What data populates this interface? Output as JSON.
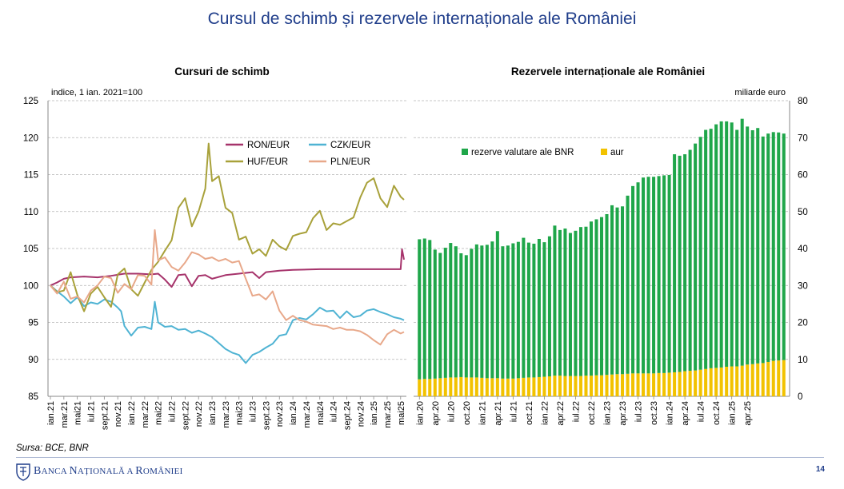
{
  "slide": {
    "title": "Cursul de schimb și rezervele internaționale ale României",
    "source": "Sursa: BCE, BNR",
    "bank_name_parts": [
      "B",
      "ANCA ",
      "N",
      "AȚIONALĂ A ",
      "R",
      "OMÂNIEI"
    ],
    "page_number": "14",
    "colors": {
      "title": "#1f3d8a",
      "logo": "#1f3d8a"
    },
    "logo_icon": "bnr-coat-of-arms-icon"
  },
  "chart_data": [
    {
      "type": "line",
      "title": "Cursuri de schimb",
      "unit_label": "indice, 1 ian. 2021=100",
      "ylim": [
        85,
        125
      ],
      "yticks": [
        85,
        90,
        95,
        100,
        105,
        110,
        115,
        120,
        125
      ],
      "grid": true,
      "legend_position": "top-right",
      "x_labels": [
        "ian.21",
        "mar.21",
        "mai21",
        "iul.21",
        "sept.21",
        "nov.21",
        "ian.22",
        "mar.22",
        "mai22",
        "iul.22",
        "sept.22",
        "nov.22",
        "ian.23",
        "mar.23",
        "mai23",
        "iul.23",
        "sept.23",
        "nov.23",
        "ian.24",
        "mar.24",
        "mai24",
        "iul.24",
        "sept.24",
        "nov.24",
        "ian.25",
        "mar.25",
        "mai25"
      ],
      "series": [
        {
          "name": "RON/EUR",
          "color": "#a6336b",
          "points": [
            [
              0,
              100
            ],
            [
              1,
              100.4
            ],
            [
              2,
              100.9
            ],
            [
              3,
              101.1
            ],
            [
              5,
              101.2
            ],
            [
              7,
              101.1
            ],
            [
              9,
              101.3
            ],
            [
              11,
              101.6
            ],
            [
              13,
              101.6
            ],
            [
              15,
              101.5
            ],
            [
              16,
              101.6
            ],
            [
              17,
              100.8
            ],
            [
              18,
              99.8
            ],
            [
              19,
              101.4
            ],
            [
              20,
              101.5
            ],
            [
              21,
              99.9
            ],
            [
              22,
              101.3
            ],
            [
              23,
              101.4
            ],
            [
              24,
              100.9
            ],
            [
              26,
              101.4
            ],
            [
              28,
              101.6
            ],
            [
              30,
              101.8
            ],
            [
              31,
              101.0
            ],
            [
              32,
              101.8
            ],
            [
              34,
              102.0
            ],
            [
              36,
              102.1
            ],
            [
              40,
              102.2
            ],
            [
              44,
              102.2
            ],
            [
              48,
              102.2
            ],
            [
              52,
              102.2
            ],
            [
              52.2,
              104.9
            ],
            [
              52.5,
              103.5
            ]
          ]
        },
        {
          "name": "CZK/EUR",
          "color": "#4fb3d3",
          "points": [
            [
              0,
              100
            ],
            [
              1,
              99.2
            ],
            [
              2,
              98.5
            ],
            [
              3,
              97.6
            ],
            [
              4,
              98.4
            ],
            [
              5,
              97.2
            ],
            [
              6,
              97.7
            ],
            [
              7,
              97.5
            ],
            [
              8,
              98.1
            ],
            [
              9,
              97.8
            ],
            [
              10,
              97.0
            ],
            [
              10.5,
              96.5
            ],
            [
              11,
              94.5
            ],
            [
              12,
              93.2
            ],
            [
              13,
              94.3
            ],
            [
              14,
              94.4
            ],
            [
              15,
              94.1
            ],
            [
              15.5,
              97.8
            ],
            [
              16,
              95.0
            ],
            [
              17,
              94.4
            ],
            [
              18,
              94.5
            ],
            [
              19,
              94.0
            ],
            [
              20,
              94.1
            ],
            [
              21,
              93.6
            ],
            [
              22,
              93.9
            ],
            [
              23,
              93.5
            ],
            [
              24,
              93.0
            ],
            [
              25,
              92.2
            ],
            [
              26,
              91.4
            ],
            [
              27,
              90.9
            ],
            [
              28,
              90.6
            ],
            [
              29,
              89.5
            ],
            [
              30,
              90.6
            ],
            [
              31,
              91.0
            ],
            [
              32,
              91.6
            ],
            [
              33,
              92.1
            ],
            [
              34,
              93.2
            ],
            [
              35,
              93.4
            ],
            [
              36,
              95.3
            ],
            [
              37,
              95.6
            ],
            [
              38,
              95.4
            ],
            [
              39,
              96.1
            ],
            [
              40,
              97.0
            ],
            [
              41,
              96.5
            ],
            [
              42,
              96.6
            ],
            [
              43,
              95.6
            ],
            [
              44,
              96.5
            ],
            [
              45,
              95.7
            ],
            [
              46,
              95.9
            ],
            [
              47,
              96.6
            ],
            [
              48,
              96.8
            ],
            [
              49,
              96.4
            ],
            [
              50,
              96.1
            ],
            [
              51,
              95.7
            ],
            [
              52,
              95.5
            ],
            [
              52.5,
              95.3
            ]
          ]
        },
        {
          "name": "HUF/EUR",
          "color": "#a8a13a",
          "points": [
            [
              0,
              100
            ],
            [
              1,
              99.1
            ],
            [
              2,
              99.3
            ],
            [
              3,
              101.8
            ],
            [
              4,
              98.7
            ],
            [
              5,
              96.5
            ],
            [
              6,
              98.9
            ],
            [
              7,
              99.8
            ],
            [
              8,
              98.4
            ],
            [
              9,
              97.1
            ],
            [
              10,
              101.5
            ],
            [
              11,
              102.3
            ],
            [
              12,
              99.5
            ],
            [
              13,
              98.6
            ],
            [
              14,
              100.4
            ],
            [
              15,
              102.1
            ],
            [
              16,
              103.2
            ],
            [
              17,
              104.7
            ],
            [
              18,
              106.1
            ],
            [
              19,
              110.5
            ],
            [
              20,
              111.8
            ],
            [
              21,
              108.0
            ],
            [
              22,
              110.0
            ],
            [
              23,
              113.1
            ],
            [
              23.5,
              119.2
            ],
            [
              24,
              114.1
            ],
            [
              25,
              114.8
            ],
            [
              26,
              110.5
            ],
            [
              27,
              109.8
            ],
            [
              28,
              106.2
            ],
            [
              29,
              106.6
            ],
            [
              30,
              104.3
            ],
            [
              31,
              104.9
            ],
            [
              32,
              104.0
            ],
            [
              33,
              106.2
            ],
            [
              34,
              105.3
            ],
            [
              35,
              104.8
            ],
            [
              36,
              106.7
            ],
            [
              37,
              107.0
            ],
            [
              38,
              107.2
            ],
            [
              39,
              109.1
            ],
            [
              40,
              110.1
            ],
            [
              41,
              107.5
            ],
            [
              42,
              108.4
            ],
            [
              43,
              108.2
            ],
            [
              44,
              108.7
            ],
            [
              45,
              109.2
            ],
            [
              46,
              111.9
            ],
            [
              47,
              113.9
            ],
            [
              48,
              114.5
            ],
            [
              49,
              111.8
            ],
            [
              50,
              110.6
            ],
            [
              51,
              113.5
            ],
            [
              52,
              112.0
            ],
            [
              52.5,
              111.6
            ]
          ]
        },
        {
          "name": "PLN/EUR",
          "color": "#e8a88a",
          "points": [
            [
              0,
              100
            ],
            [
              1,
              98.9
            ],
            [
              2,
              100.5
            ],
            [
              3,
              98.2
            ],
            [
              4,
              98.5
            ],
            [
              5,
              97.7
            ],
            [
              6,
              99.3
            ],
            [
              7,
              100.0
            ],
            [
              8,
              101.2
            ],
            [
              9,
              101.0
            ],
            [
              10,
              99.0
            ],
            [
              11,
              100.2
            ],
            [
              12,
              99.5
            ],
            [
              13,
              101.4
            ],
            [
              14,
              101.3
            ],
            [
              15,
              100.1
            ],
            [
              15.5,
              107.5
            ],
            [
              16,
              103.4
            ],
            [
              17,
              103.8
            ],
            [
              18,
              102.5
            ],
            [
              19,
              102.0
            ],
            [
              20,
              103.1
            ],
            [
              21,
              104.5
            ],
            [
              22,
              104.2
            ],
            [
              23,
              103.6
            ],
            [
              24,
              103.8
            ],
            [
              25,
              103.3
            ],
            [
              26,
              103.6
            ],
            [
              27,
              103.1
            ],
            [
              28,
              103.3
            ],
            [
              29,
              100.9
            ],
            [
              30,
              98.6
            ],
            [
              31,
              98.8
            ],
            [
              32,
              98.1
            ],
            [
              33,
              99.2
            ],
            [
              34,
              96.6
            ],
            [
              35,
              95.3
            ],
            [
              36,
              95.9
            ],
            [
              37,
              95.3
            ],
            [
              38,
              95.1
            ],
            [
              39,
              94.7
            ],
            [
              40,
              94.6
            ],
            [
              41,
              94.5
            ],
            [
              42,
              94.1
            ],
            [
              43,
              94.3
            ],
            [
              44,
              94.0
            ],
            [
              45,
              94.0
            ],
            [
              46,
              93.8
            ],
            [
              47,
              93.3
            ],
            [
              48,
              92.6
            ],
            [
              49,
              92.0
            ],
            [
              50,
              93.4
            ],
            [
              51,
              94.0
            ],
            [
              52,
              93.5
            ],
            [
              52.5,
              93.7
            ]
          ]
        }
      ]
    },
    {
      "type": "bar",
      "stacked": true,
      "title": "Rezervele internaționale ale României",
      "unit_label": "miliarde euro",
      "ylim": [
        0,
        80
      ],
      "yticks": [
        0,
        10,
        20,
        30,
        40,
        50,
        60,
        70,
        80
      ],
      "grid": true,
      "legend_position": "top-left",
      "x_labels": [
        "ian.20",
        "apr.20",
        "iul.20",
        "oct.20",
        "ian.21",
        "apr.21",
        "iul.21",
        "oct.21",
        "ian.22",
        "apr.22",
        "iul.22",
        "oct.22",
        "ian.23",
        "apr.23",
        "iul.23",
        "oct.23",
        "ian.24",
        "apr.24",
        "iul.24",
        "oct.24",
        "ian.25",
        "apr.25"
      ],
      "series": [
        {
          "name": "rezerve valutare ale BNR",
          "color": "#1fa64a",
          "values": [
            37.9,
            38.0,
            37.6,
            34.9,
            33.9,
            35.2,
            36.4,
            35.5,
            33.5,
            33.1,
            34.8,
            36.0,
            35.8,
            36.1,
            37.0,
            39.8,
            35.8,
            36.0,
            36.6,
            36.9,
            37.9,
            36.5,
            36.2,
            37.4,
            36.4,
            37.9,
            40.6,
            39.4,
            39.9,
            38.7,
            39.3,
            40.3,
            40.3,
            41.7,
            42.2,
            42.8,
            43.5,
            45.8,
            45.1,
            45.4,
            48.2,
            50.7,
            51.7,
            53.0,
            53.2,
            53.2,
            53.3,
            53.5,
            53.5,
            59.0,
            58.5,
            58.7,
            59.8,
            61.4,
            63.0,
            64.7,
            64.8,
            65.9,
            66.6,
            66.4,
            66.0,
            64.0,
            66.8,
            64.4,
            63.3,
            63.7,
            61.3,
            61.8,
            61.9,
            61.7,
            61.3
          ],
          "note": "values shown stacked on gold (total = gold + FX reserves)"
        },
        {
          "name": "aur",
          "color": "#f2c200",
          "values": [
            4.6,
            4.7,
            4.7,
            4.8,
            4.9,
            5.0,
            5.1,
            5.1,
            5.2,
            5.1,
            5.1,
            5.1,
            5.0,
            4.9,
            4.9,
            4.9,
            4.8,
            4.8,
            4.8,
            4.9,
            5.0,
            5.1,
            5.1,
            5.2,
            5.3,
            5.4,
            5.6,
            5.6,
            5.5,
            5.5,
            5.5,
            5.5,
            5.6,
            5.6,
            5.7,
            5.7,
            5.8,
            5.9,
            6.0,
            6.0,
            6.1,
            6.2,
            6.2,
            6.2,
            6.2,
            6.2,
            6.3,
            6.3,
            6.4,
            6.5,
            6.6,
            6.8,
            6.9,
            7.0,
            7.2,
            7.4,
            7.6,
            7.7,
            7.8,
            8.0,
            8.1,
            8.1,
            8.3,
            8.6,
            8.7,
            8.9,
            9.0,
            9.3,
            9.6,
            9.7,
            9.8
          ]
        }
      ]
    }
  ]
}
